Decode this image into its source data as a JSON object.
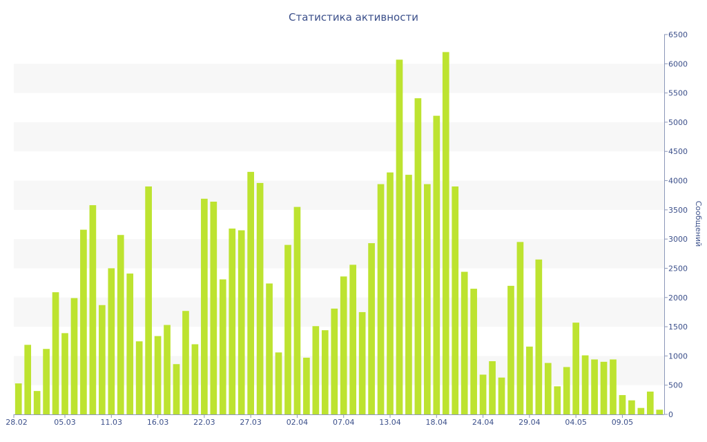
{
  "chart_data": {
    "type": "bar",
    "title": "Статистика активности",
    "xlabel": "",
    "ylabel": "Сообщений",
    "ylim": [
      0,
      6500
    ],
    "y_axis_side": "right",
    "yticks": [
      0,
      500,
      1000,
      1500,
      2000,
      2500,
      3000,
      3500,
      4000,
      4500,
      5000,
      5500,
      6000,
      6500
    ],
    "xtick_labels": [
      {
        "index": 0,
        "label": "28.02"
      },
      {
        "index": 5,
        "label": "05.03"
      },
      {
        "index": 10,
        "label": "11.03"
      },
      {
        "index": 15,
        "label": "16.03"
      },
      {
        "index": 20,
        "label": "22.03"
      },
      {
        "index": 25,
        "label": "27.03"
      },
      {
        "index": 30,
        "label": "02.04"
      },
      {
        "index": 35,
        "label": "07.04"
      },
      {
        "index": 40,
        "label": "13.04"
      },
      {
        "index": 45,
        "label": "18.04"
      },
      {
        "index": 50,
        "label": "24.04"
      },
      {
        "index": 55,
        "label": "29.04"
      },
      {
        "index": 60,
        "label": "04.05"
      },
      {
        "index": 65,
        "label": "09.05"
      }
    ],
    "bar_color": "#bde330",
    "band_color": "#f7f7f7",
    "axis_color": "#8a96b8",
    "grid": "alternating horizontal bands",
    "values": [
      530,
      1190,
      400,
      1120,
      2090,
      1390,
      1990,
      3160,
      3580,
      1870,
      2500,
      3070,
      2410,
      1250,
      3900,
      1340,
      1530,
      860,
      1770,
      1200,
      3690,
      3640,
      2310,
      3180,
      3150,
      4150,
      3960,
      2240,
      1060,
      2900,
      3550,
      970,
      1510,
      1440,
      1810,
      2360,
      2560,
      1750,
      2930,
      3940,
      4140,
      6070,
      4100,
      5410,
      3940,
      5110,
      6200,
      3900,
      2440,
      2150,
      680,
      910,
      630,
      2200,
      2950,
      1160,
      2650,
      880,
      480,
      810,
      1570,
      1010,
      940,
      900,
      940,
      330,
      240,
      110,
      390,
      80
    ]
  }
}
